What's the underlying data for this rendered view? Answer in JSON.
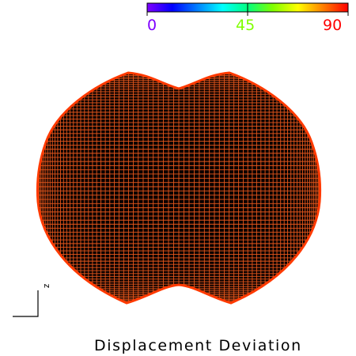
{
  "colorbar": {
    "min_label": "0",
    "mid_label": "45",
    "max_label": "90",
    "min_color": "#7f00ff",
    "mid_color": "#80ff00",
    "max_color": "#ff0000",
    "gradient": [
      "#8000ff",
      "#0000ff",
      "#0080ff",
      "#00ffff",
      "#00ff80",
      "#80ff00",
      "#ffff00",
      "#ff8000",
      "#ff0000"
    ]
  },
  "mesh": {
    "line_color": "#e4571c",
    "fill_color": "#0a0100",
    "rim_colors": [
      "#ff3a00",
      "#ff7a00",
      "#ffd400"
    ]
  },
  "axis_label": "z",
  "caption": "Displacement Deviation"
}
